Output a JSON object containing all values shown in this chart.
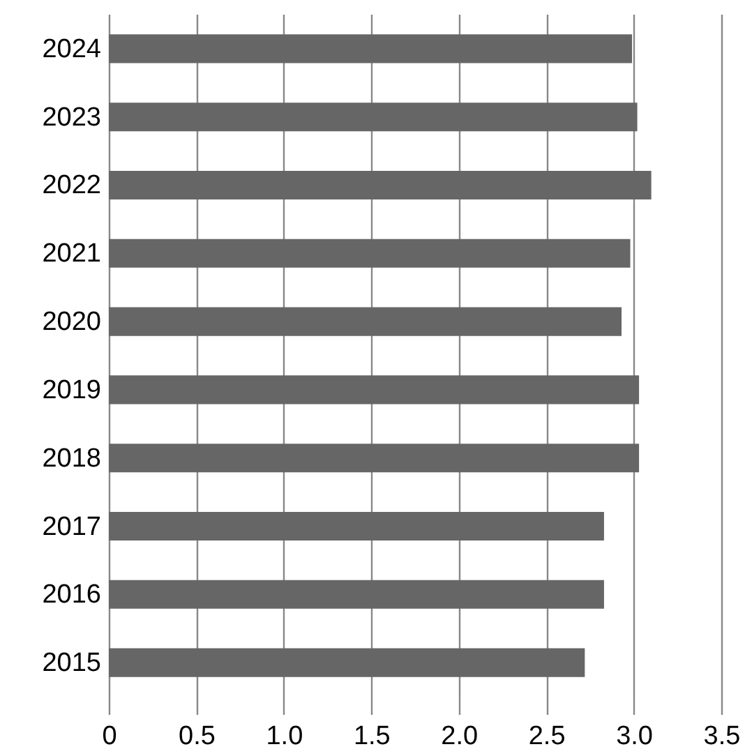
{
  "chart_data": {
    "type": "bar",
    "orientation": "horizontal",
    "categories": [
      "2024",
      "2023",
      "2022",
      "2021",
      "2020",
      "2019",
      "2018",
      "2017",
      "2016",
      "2015"
    ],
    "values": [
      2.99,
      3.02,
      3.1,
      2.98,
      2.93,
      3.03,
      3.03,
      2.83,
      2.83,
      2.72
    ],
    "color": "#666666",
    "xlim": [
      0,
      3.5
    ],
    "xticks": [
      0,
      0.5,
      {
        "value": 1,
        "label": "1.0"
      },
      1.5,
      {
        "value": 2,
        "label": "2.0"
      },
      2.5,
      {
        "value": 3,
        "label": "3.0"
      },
      3.5
    ],
    "grid": "x"
  }
}
